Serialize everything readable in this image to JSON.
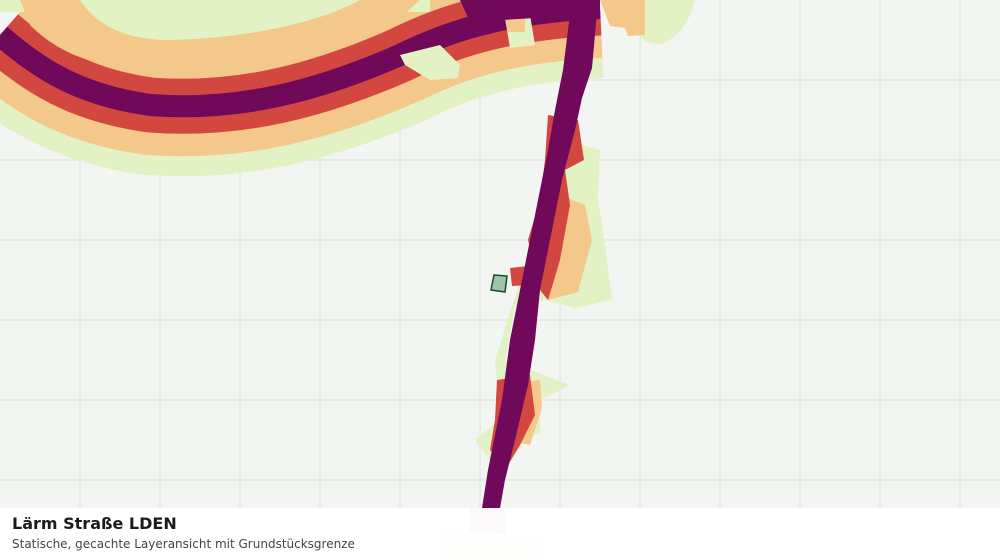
{
  "layer": {
    "title": "Lärm Straße LDEN",
    "subtitle": "Statische, gecachte Layeransicht mit Grundstücksgrenze"
  },
  "colors": {
    "background": "#f3f5f3",
    "grid": "#dedfdc",
    "noise_band_1": "#e3f2c5",
    "noise_band_2": "#f4c88a",
    "noise_band_3": "#d2473f",
    "noise_band_4": "#70095a",
    "parcel_fill": "#9ec5a8",
    "parcel_stroke": "#1d4a26"
  },
  "icons": {
    "parcel": "parcel-boundary-marker"
  }
}
